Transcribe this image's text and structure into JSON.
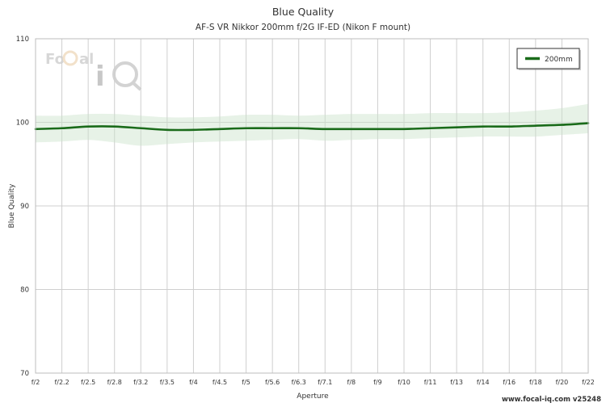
{
  "watermark": {
    "logo_text": "FoCal iQ"
  },
  "footer": {
    "credit": "www.focal-iq.com  v25248"
  },
  "chart_data": {
    "type": "line",
    "title": "Blue Quality",
    "subtitle": "AF-S VR Nikkor 200mm f/2G IF-ED (Nikon F mount)",
    "xlabel": "Aperture",
    "ylabel": "Blue Quality",
    "ylim": [
      70,
      110
    ],
    "yticks": [
      70,
      80,
      90,
      100,
      110
    ],
    "grid": true,
    "legend_position": "top-right",
    "categories": [
      "f/2",
      "f/2.2",
      "f/2.5",
      "f/2.8",
      "f/3.2",
      "f/3.5",
      "f/4",
      "f/4.5",
      "f/5",
      "f/5.6",
      "f/6.3",
      "f/7.1",
      "f/8",
      "f/9",
      "f/10",
      "f/11",
      "f/13",
      "f/14",
      "f/16",
      "f/18",
      "f/20",
      "f/22"
    ],
    "series": [
      {
        "name": "200mm",
        "color": "#1a6b1a",
        "band_color": "#c9e3c9",
        "values": [
          99.2,
          99.3,
          99.5,
          99.5,
          99.3,
          99.1,
          99.1,
          99.2,
          99.3,
          99.3,
          99.3,
          99.2,
          99.2,
          99.2,
          99.2,
          99.3,
          99.4,
          99.5,
          99.5,
          99.6,
          99.7,
          99.9
        ],
        "upper": [
          100.8,
          100.8,
          101.0,
          101.0,
          100.8,
          100.6,
          100.6,
          100.7,
          100.9,
          100.9,
          100.8,
          100.9,
          101.0,
          101.0,
          101.0,
          101.1,
          101.1,
          101.1,
          101.2,
          101.4,
          101.7,
          102.2
        ],
        "lower": [
          97.6,
          97.7,
          97.9,
          97.6,
          97.2,
          97.4,
          97.6,
          97.7,
          97.8,
          97.9,
          98.0,
          97.8,
          97.9,
          98.0,
          98.0,
          98.1,
          98.2,
          98.3,
          98.3,
          98.3,
          98.5,
          98.7
        ]
      }
    ]
  }
}
